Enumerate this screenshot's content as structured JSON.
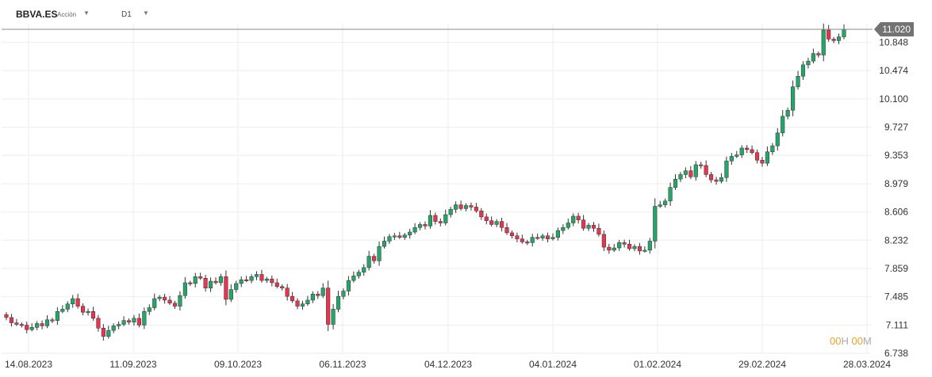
{
  "toolbar": {
    "symbol": "BBVA.ES",
    "instrument_type": "Acción",
    "timeframe": "D1",
    "dropdown_icon": "caret-down-icon"
  },
  "countdown": {
    "hours": "00",
    "h_label": "H",
    "minutes": "00",
    "m_label": "M"
  },
  "colors": {
    "up": "#26a56a",
    "down": "#e8344e",
    "grid": "#eeeeee",
    "axis_text": "#333333",
    "price_tag_bg": "#737373",
    "countdown_digits": "#f0a020"
  },
  "chart_data": {
    "type": "candlestick",
    "title": "",
    "xlabel": "",
    "ylabel": "",
    "grid": true,
    "ylim": [
      6.738,
      11.22
    ],
    "y_ticks": [
      "11.020",
      "10.848",
      "10.474",
      "10.100",
      "9.727",
      "9.353",
      "8.979",
      "8.606",
      "8.232",
      "7.859",
      "7.485",
      "7.111",
      "6.738"
    ],
    "current_price": "11.020",
    "x_ticks": [
      "14.08.2023",
      "11.09.2023",
      "09.10.2023",
      "06.11.2023",
      "04.12.2023",
      "04.01.2024",
      "01.02.2024",
      "29.02.2024",
      "28.03.2024"
    ],
    "closes": [
      7.21,
      7.14,
      7.12,
      7.11,
      7.05,
      7.08,
      7.13,
      7.1,
      7.18,
      7.17,
      7.29,
      7.32,
      7.39,
      7.46,
      7.36,
      7.28,
      7.29,
      7.2,
      7.07,
      6.96,
      7.04,
      7.1,
      7.12,
      7.17,
      7.15,
      7.2,
      7.11,
      7.29,
      7.34,
      7.46,
      7.48,
      7.44,
      7.4,
      7.36,
      7.5,
      7.67,
      7.66,
      7.75,
      7.73,
      7.6,
      7.69,
      7.67,
      7.75,
      7.45,
      7.58,
      7.66,
      7.71,
      7.7,
      7.75,
      7.78,
      7.7,
      7.72,
      7.67,
      7.62,
      7.6,
      7.49,
      7.43,
      7.36,
      7.39,
      7.44,
      7.52,
      7.5,
      7.6,
      7.12,
      7.32,
      7.49,
      7.56,
      7.7,
      7.76,
      7.81,
      7.87,
      8.02,
      7.96,
      8.15,
      8.22,
      8.28,
      8.29,
      8.27,
      8.3,
      8.34,
      8.4,
      8.44,
      8.42,
      8.56,
      8.48,
      8.46,
      8.57,
      8.64,
      8.7,
      8.65,
      8.69,
      8.67,
      8.62,
      8.54,
      8.49,
      8.44,
      8.48,
      8.4,
      8.33,
      8.29,
      8.25,
      8.21,
      8.2,
      8.27,
      8.26,
      8.29,
      8.25,
      8.27,
      8.36,
      8.4,
      8.46,
      8.55,
      8.5,
      8.39,
      8.43,
      8.39,
      8.31,
      8.14,
      8.1,
      8.13,
      8.2,
      8.18,
      8.12,
      8.15,
      8.09,
      8.1,
      8.22,
      8.68,
      8.7,
      8.75,
      8.93,
      9.04,
      9.1,
      9.15,
      9.07,
      9.23,
      9.22,
      9.1,
      9.03,
      9.01,
      9.06,
      9.28,
      9.34,
      9.36,
      9.45,
      9.43,
      9.39,
      9.29,
      9.25,
      9.4,
      9.48,
      9.65,
      9.87,
      9.95,
      10.26,
      10.4,
      10.55,
      10.6,
      10.7,
      10.68,
      11.01,
      10.89,
      10.87,
      10.92,
      11.02
    ]
  }
}
